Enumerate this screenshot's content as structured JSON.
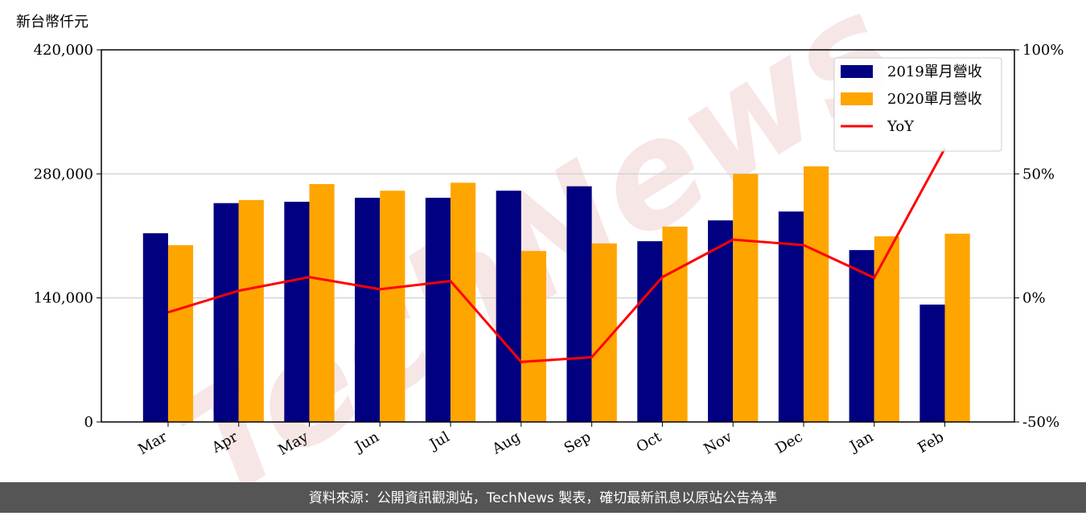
{
  "chart_data": {
    "type": "bar-line",
    "y_label": "新台幣仟元",
    "watermark": "TechNews",
    "footer": "資料來源：公開資訊觀測站，TechNews 製表，確切最新訊息以原站公告為準",
    "categories": [
      "Mar",
      "Apr",
      "May",
      "Jun",
      "Jul",
      "Aug",
      "Sep",
      "Oct",
      "Nov",
      "Dec",
      "Jan",
      "Feb"
    ],
    "series": [
      {
        "name": "2019單月營收",
        "color": "#000080",
        "kind": "bar",
        "values": [
          213000,
          247000,
          248500,
          253000,
          253000,
          261000,
          266000,
          204000,
          227500,
          237500,
          194000,
          132500
        ]
      },
      {
        "name": "2020單月營收",
        "color": "#ffa500",
        "kind": "bar",
        "values": [
          199500,
          250500,
          268500,
          261000,
          270000,
          193000,
          201500,
          220500,
          280000,
          288500,
          209500,
          212500
        ]
      },
      {
        "name": "YoY",
        "color": "#ff0000",
        "kind": "line",
        "axis": "y2",
        "values": [
          -5.8,
          2.9,
          8.4,
          3.5,
          6.8,
          -25.8,
          -23.9,
          8.4,
          23.5,
          21.3,
          8.1,
          60.3
        ]
      }
    ],
    "ylim": [
      0,
      420000
    ],
    "yticks": [
      0,
      {
        "value": 140000,
        "label": "140,000"
      },
      {
        "value": 280000,
        "label": "280,000"
      },
      {
        "value": 420000,
        "label": "420,000"
      }
    ],
    "y2lim": [
      -50,
      100
    ],
    "y2ticks": [
      {
        "value": -50,
        "label": "-50%"
      },
      {
        "value": 0,
        "label": "0%"
      },
      {
        "value": 50,
        "label": "50%"
      },
      {
        "value": 100,
        "label": "100%"
      }
    ],
    "grid": true,
    "legend": "upper right"
  }
}
